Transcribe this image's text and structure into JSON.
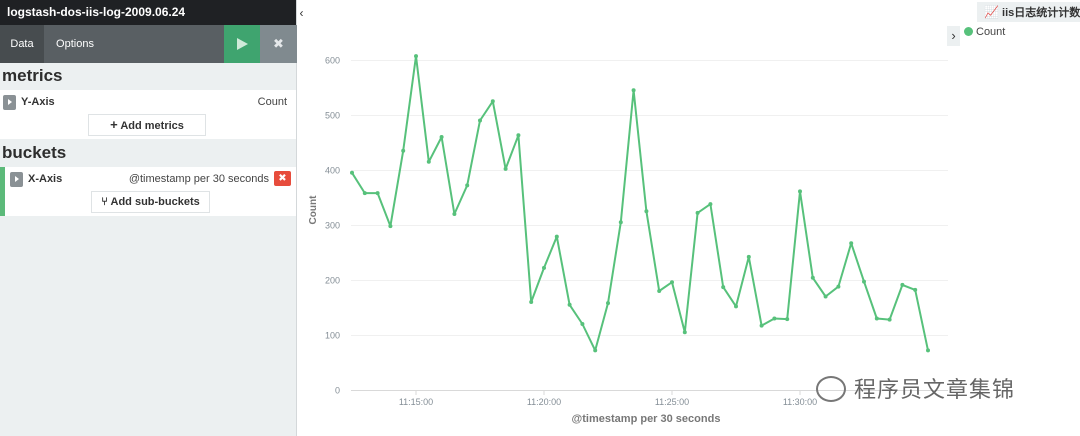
{
  "sidebar": {
    "index_title": "logstash-dos-iis-log-2009.06.24",
    "tabs": [
      {
        "label": "Data"
      },
      {
        "label": "Options"
      }
    ],
    "apply_icon": "play-icon",
    "discard_icon": "times-icon",
    "discard_label": "✖",
    "metrics": {
      "title": "metrics",
      "y_axis": {
        "label": "Y-Axis",
        "value": "Count"
      },
      "add_button": "Add metrics"
    },
    "buckets": {
      "title": "buckets",
      "x_axis": {
        "label": "X-Axis",
        "value": "@timestamp per 30 seconds"
      },
      "remove_label": "✖",
      "add_button": "Add sub-buckets"
    }
  },
  "visualization": {
    "title": "iis日志统计计数",
    "legend_toggle": "›",
    "collapse_sidebar": "‹",
    "legend": [
      {
        "name": "Count",
        "color": "#57c17b"
      }
    ]
  },
  "watermark": "程序员文章集锦",
  "chart_data": {
    "type": "line",
    "xlabel": "@timestamp per 30 seconds",
    "ylabel": "Count",
    "ylim": [
      0,
      650
    ],
    "yticks": [
      0,
      100,
      200,
      300,
      400,
      500,
      600
    ],
    "xticks": [
      "11:15:00",
      "11:20:00",
      "11:25:00",
      "11:30:00"
    ],
    "x_start": "11:12:30",
    "x_interval_seconds": 30,
    "color": "#57c17b",
    "series": [
      {
        "name": "Count",
        "values": [
          395,
          358,
          358,
          298,
          435,
          607,
          415,
          460,
          320,
          372,
          490,
          525,
          402,
          463,
          160,
          222,
          279,
          155,
          120,
          72,
          158,
          305,
          545,
          325,
          180,
          196,
          105,
          322,
          338,
          187,
          152,
          242,
          117,
          130,
          129,
          361,
          204,
          170,
          188,
          267,
          197,
          130,
          128,
          191,
          182,
          72
        ]
      }
    ]
  }
}
